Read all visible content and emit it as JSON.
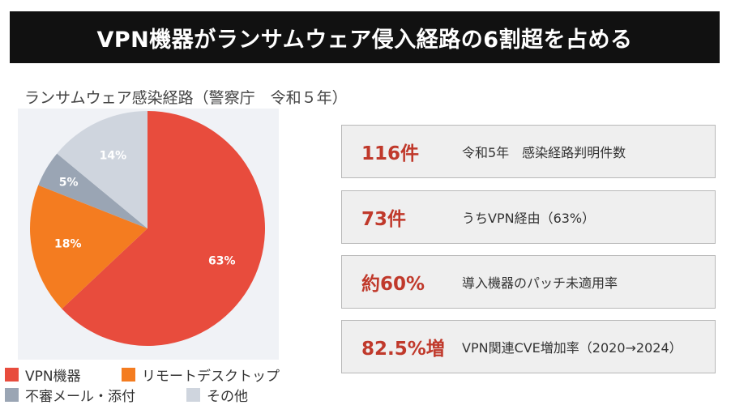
{
  "title": "VPN機器がランサムウェア侵入経路の6割超を占める",
  "chart_data": {
    "type": "pie",
    "title": "ランサムウェア感染経路（警察庁　令和５年）",
    "categories": [
      "VPN機器",
      "リモートデスクトップ",
      "不審メール・添付",
      "その他"
    ],
    "values": [
      63,
      18,
      5,
      14
    ],
    "value_labels": [
      "63%",
      "18%",
      "5%",
      "14%"
    ],
    "colors": [
      "#e84c3d",
      "#f47c20",
      "#9aa5b4",
      "#cfd5de"
    ],
    "legend_placement": "bottom"
  },
  "stats": [
    {
      "value": "116件",
      "desc": "令和5年　感染経路判明件数"
    },
    {
      "value": "73件",
      "desc": "うちVPN経由（63%）"
    },
    {
      "value": "約60%",
      "desc": "導入機器のパッチ未適用率"
    },
    {
      "value": "82.5%増",
      "desc": "VPN関連CVE増加率（2020→2024）"
    }
  ]
}
